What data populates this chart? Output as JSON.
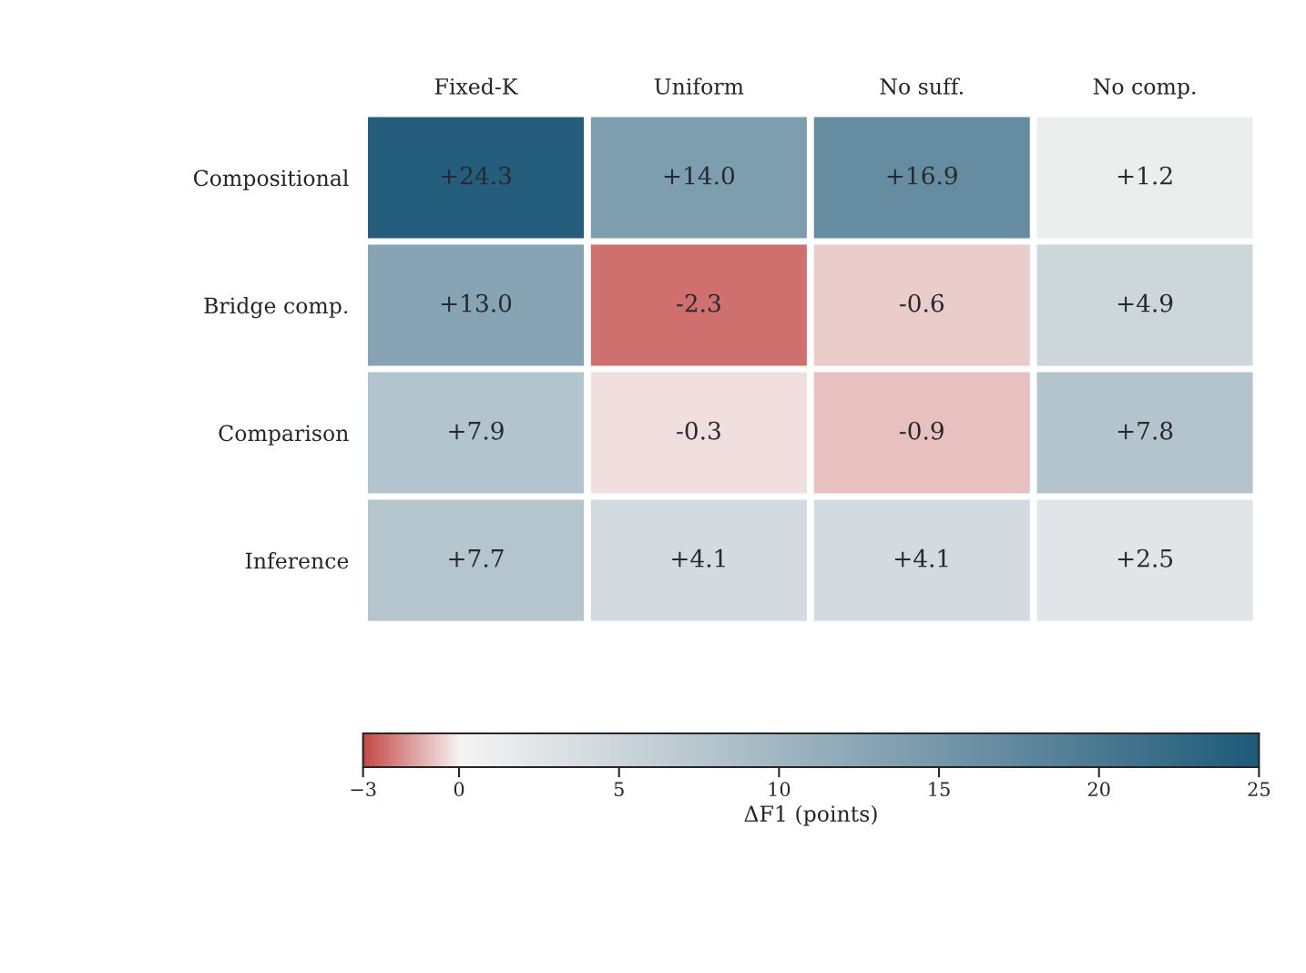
{
  "chart_data": {
    "type": "heatmap",
    "categories": [
      "Fixed-K",
      "Uniform",
      "No suff.",
      "No comp."
    ],
    "y_categories": [
      "Compositional",
      "Bridge comp.",
      "Comparison",
      "Inference"
    ],
    "cells": [
      [
        24.3,
        14.0,
        16.9,
        1.2
      ],
      [
        13.0,
        -2.3,
        -0.6,
        4.9
      ],
      [
        7.9,
        -0.3,
        -0.9,
        7.8
      ],
      [
        7.7,
        4.1,
        4.1,
        2.5
      ]
    ],
    "cell_labels": [
      [
        "+24.3",
        "+14.0",
        "+16.9",
        "+1.2"
      ],
      [
        "+13.0",
        "-2.3",
        "-0.6",
        "+4.9"
      ],
      [
        "+7.9",
        "-0.3",
        "-0.9",
        "+7.8"
      ],
      [
        "+7.7",
        "+4.1",
        "+4.1",
        "+2.5"
      ]
    ],
    "clim": [
      -3,
      25
    ],
    "cticks": [
      {
        "value": -3,
        "label": "−3"
      },
      0,
      5,
      10,
      15,
      20,
      25
    ],
    "clabel": "ΔF1 (points)"
  }
}
